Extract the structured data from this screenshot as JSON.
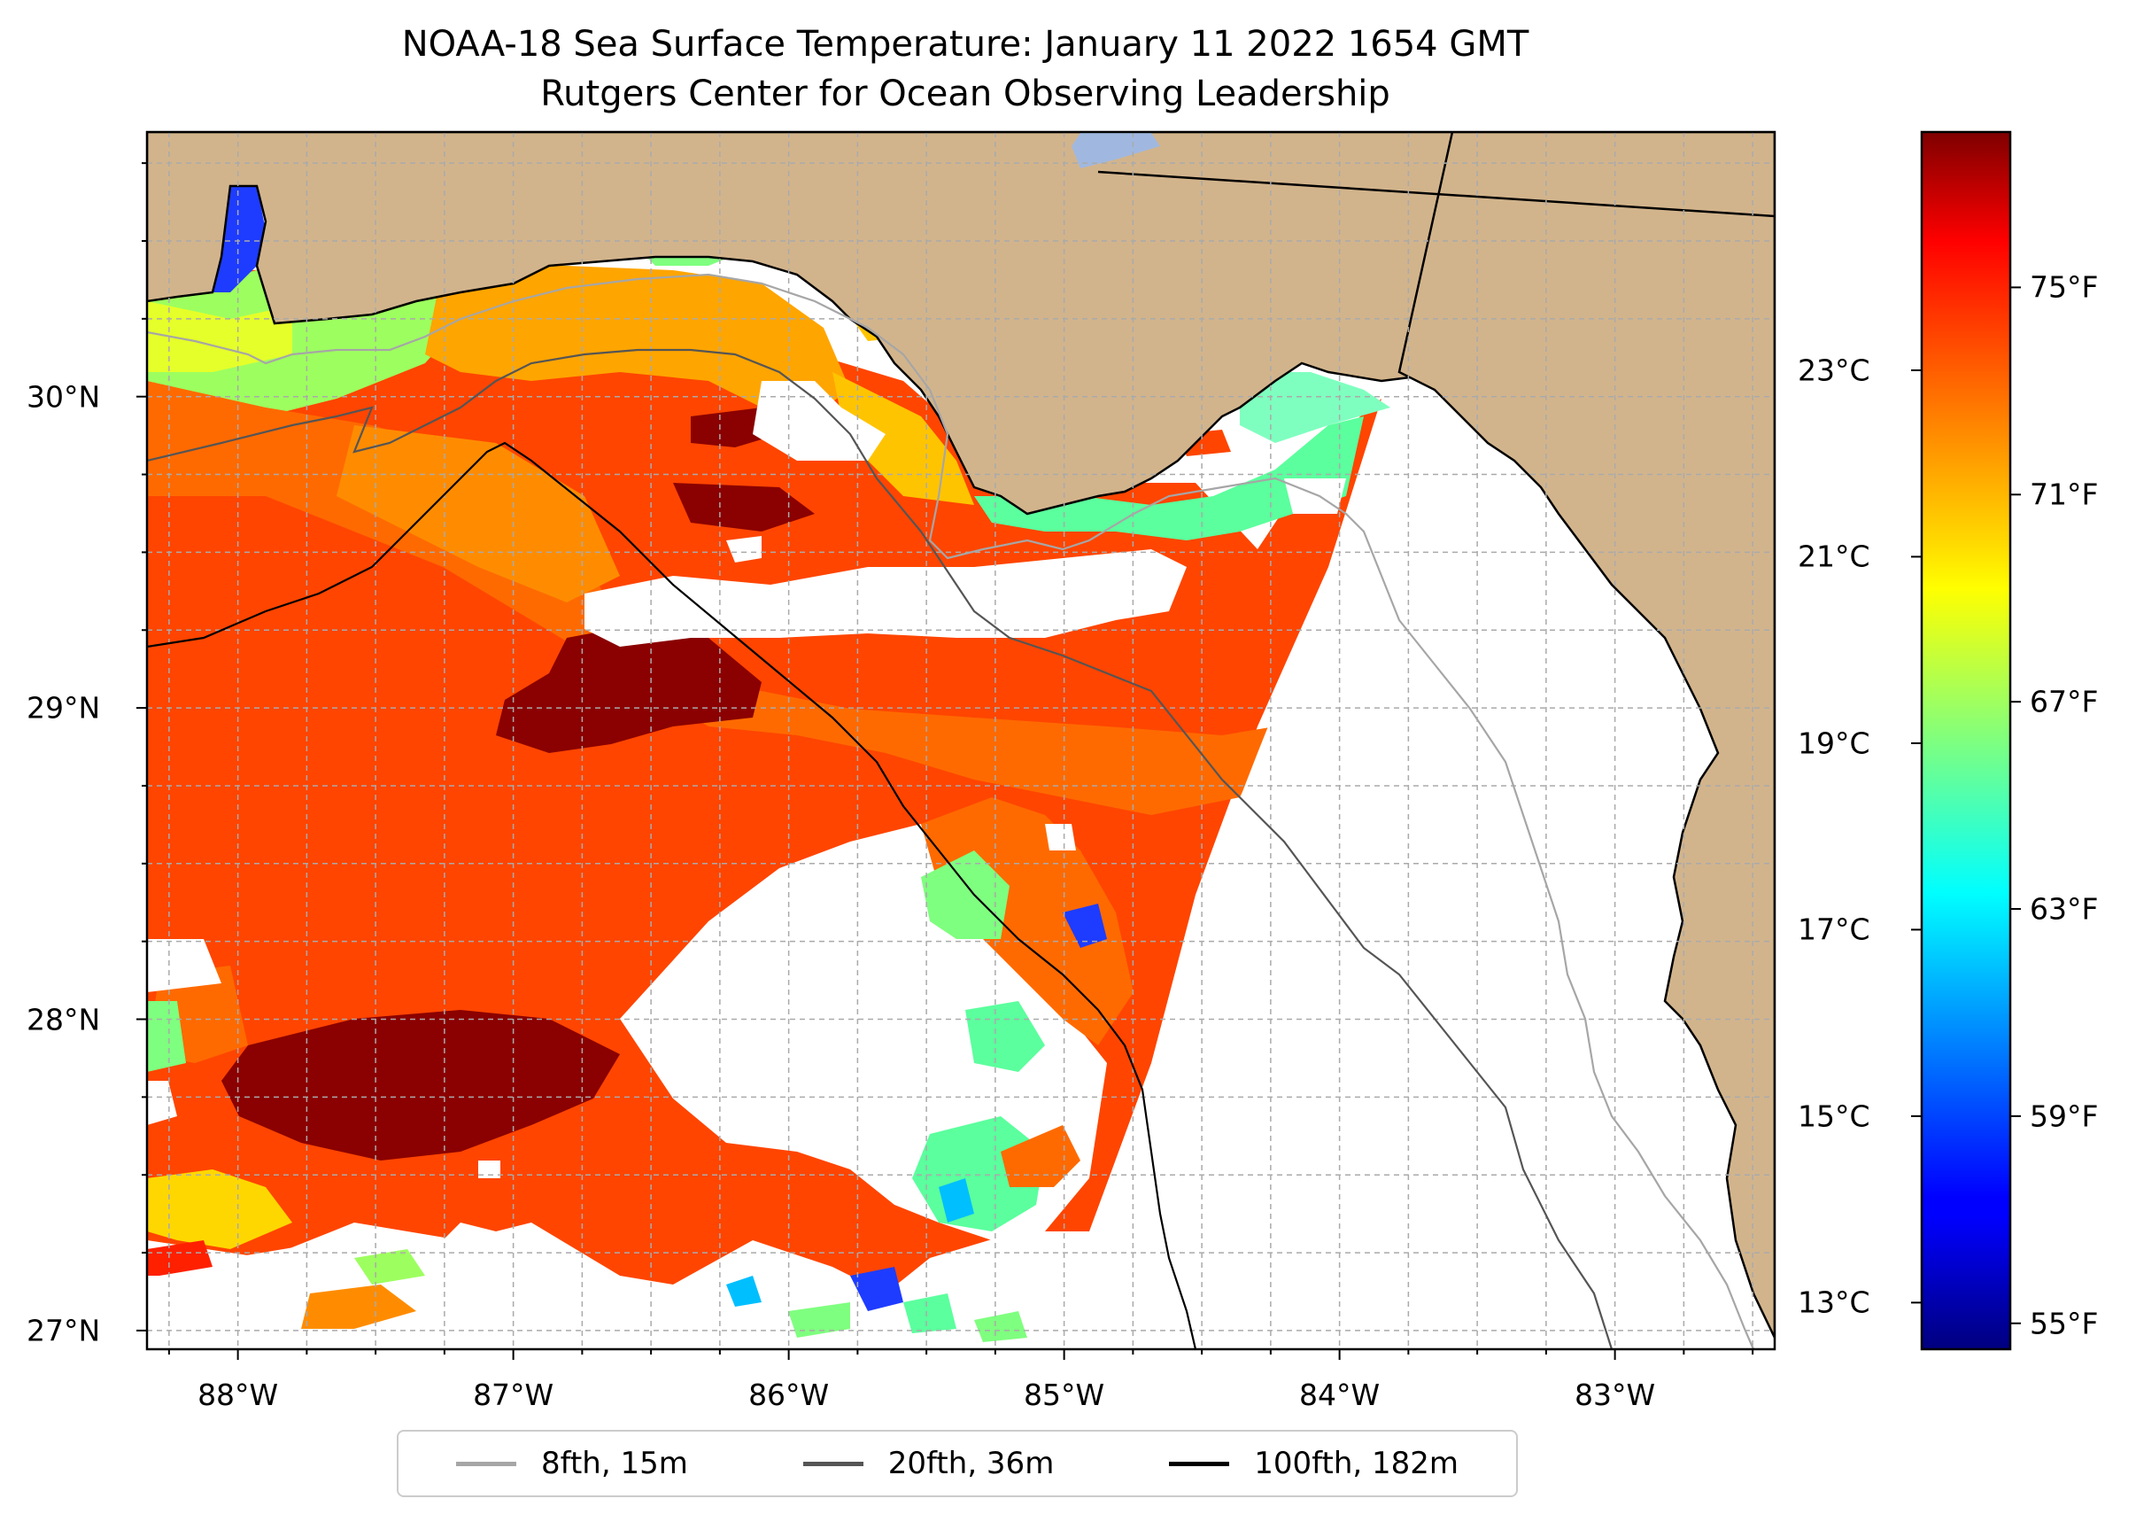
{
  "title_line1": "NOAA-18 Sea Surface Temperature: January 11 2022 1654 GMT",
  "title_line2": "Rutgers Center for Ocean Observing Leadership",
  "map": {
    "extent": {
      "lon_min": -88.33,
      "lon_max": -82.42,
      "lat_min": 26.94,
      "lat_max": 30.85
    },
    "land_color": "#d2b48c",
    "grid": "on",
    "lon_ticks": [
      {
        "value": -88,
        "label": "88°W"
      },
      {
        "value": -87,
        "label": "87°W"
      },
      {
        "value": -86,
        "label": "86°W"
      },
      {
        "value": -85,
        "label": "85°W"
      },
      {
        "value": -84,
        "label": "84°W"
      },
      {
        "value": -83,
        "label": "83°W"
      }
    ],
    "lat_ticks": [
      {
        "value": 30,
        "label": "30°N"
      },
      {
        "value": 29,
        "label": "29°N"
      },
      {
        "value": 28,
        "label": "28°N"
      },
      {
        "value": 27,
        "label": "27°N"
      }
    ]
  },
  "colorbar": {
    "colormap": "jet",
    "fahrenheit_ticks": [
      {
        "value": 75,
        "label": "75°F"
      },
      {
        "value": 71,
        "label": "71°F"
      },
      {
        "value": 67,
        "label": "67°F"
      },
      {
        "value": 63,
        "label": "63°F"
      },
      {
        "value": 59,
        "label": "59°F"
      },
      {
        "value": 55,
        "label": "55°F"
      }
    ],
    "celsius_ticks": [
      {
        "value": 23,
        "label": "23°C"
      },
      {
        "value": 21,
        "label": "21°C"
      },
      {
        "value": 19,
        "label": "19°C"
      },
      {
        "value": 17,
        "label": "17°C"
      },
      {
        "value": 15,
        "label": "15°C"
      },
      {
        "value": 13,
        "label": "13°C"
      }
    ]
  },
  "legend": {
    "placement": "bottom-center",
    "items": [
      {
        "label": "8fth, 15m",
        "color": "#a6a6a6"
      },
      {
        "label": "20fth, 36m",
        "color": "#555555"
      },
      {
        "label": "100fth, 182m",
        "color": "#000000"
      }
    ]
  }
}
